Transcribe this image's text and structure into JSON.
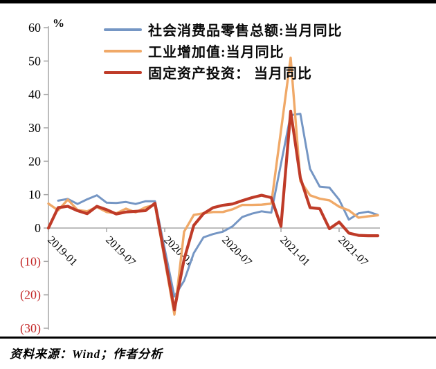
{
  "footer": {
    "source_text": "资料来源：Wind；作者分析"
  },
  "chart_data": {
    "type": "line",
    "unit": "%",
    "title": "",
    "xlabel": "",
    "ylabel": "%",
    "ylim": [
      -30,
      60
    ],
    "grid": "zero-line-only",
    "legend_position": "top-center",
    "axis_color": "#A6A6A6",
    "negative_tick_color": "#C42B2B",
    "y_ticks": [
      60,
      50,
      40,
      30,
      20,
      10,
      0,
      -10,
      -20,
      -30
    ],
    "y_tick_labels": [
      "60",
      "50",
      "40",
      "30",
      "20",
      "10",
      "0",
      "(10)",
      "(20)",
      "(30)"
    ],
    "x": [
      "2019-01",
      "2019-02",
      "2019-03",
      "2019-04",
      "2019-05",
      "2019-06",
      "2019-07",
      "2019-08",
      "2019-09",
      "2019-10",
      "2019-11",
      "2019-12",
      "2020-01",
      "2020-02",
      "2020-03",
      "2020-04",
      "2020-05",
      "2020-06",
      "2020-07",
      "2020-08",
      "2020-09",
      "2020-10",
      "2020-11",
      "2020-12",
      "2021-01",
      "2021-02",
      "2021-03",
      "2021-04",
      "2021-05",
      "2021-06",
      "2021-07",
      "2021-08",
      "2021-09",
      "2021-10",
      "2021-11"
    ],
    "x_tick_labels": [
      "2019-01",
      "2019-07",
      "2020-01",
      "2020-07",
      "2021-01",
      "2021-07"
    ],
    "x_tick_indices": [
      0,
      6,
      12,
      18,
      24,
      30
    ],
    "series": [
      {
        "id": "retail",
        "name": "社会消费品零售总额:当月同比",
        "color": "#7596C4",
        "width": 3,
        "values": [
          null,
          8.2,
          8.7,
          7.2,
          8.6,
          9.8,
          7.6,
          7.5,
          7.8,
          7.2,
          8.0,
          8.0,
          null,
          -20.5,
          -15.8,
          -7.5,
          -2.8,
          -1.8,
          -1.1,
          0.5,
          3.3,
          4.3,
          5.0,
          4.6,
          null,
          33.8,
          34.2,
          17.7,
          12.4,
          12.1,
          8.5,
          2.5,
          4.4,
          4.9,
          3.9
        ]
      },
      {
        "id": "industrial",
        "name": "工业增加值:当月同比",
        "color": "#F0A968",
        "width": 3.4,
        "values": [
          7.3,
          5.3,
          8.5,
          5.4,
          5.0,
          6.3,
          4.8,
          4.4,
          5.8,
          4.7,
          6.2,
          6.9,
          null,
          -25.9,
          -1.1,
          3.9,
          4.4,
          4.8,
          4.8,
          5.6,
          6.9,
          6.9,
          7.0,
          7.3,
          null,
          51.0,
          14.1,
          9.8,
          8.8,
          8.3,
          6.4,
          5.3,
          3.1,
          3.5,
          3.8
        ]
      },
      {
        "id": "fai",
        "name": "固定资产投资： 当月同比",
        "color": "#BF3B28",
        "width": 4.2,
        "values": [
          0.0,
          6.1,
          6.5,
          5.2,
          4.3,
          6.5,
          5.5,
          4.2,
          4.8,
          5.0,
          5.2,
          7.4,
          null,
          -24.5,
          -9.4,
          0.8,
          4.3,
          6.1,
          6.8,
          7.2,
          8.2,
          9.1,
          9.8,
          9.1,
          0.5,
          35.0,
          15.0,
          6.1,
          5.8,
          -0.2,
          1.8,
          -1.5,
          -2.2,
          -2.3,
          -2.3
        ]
      }
    ]
  }
}
